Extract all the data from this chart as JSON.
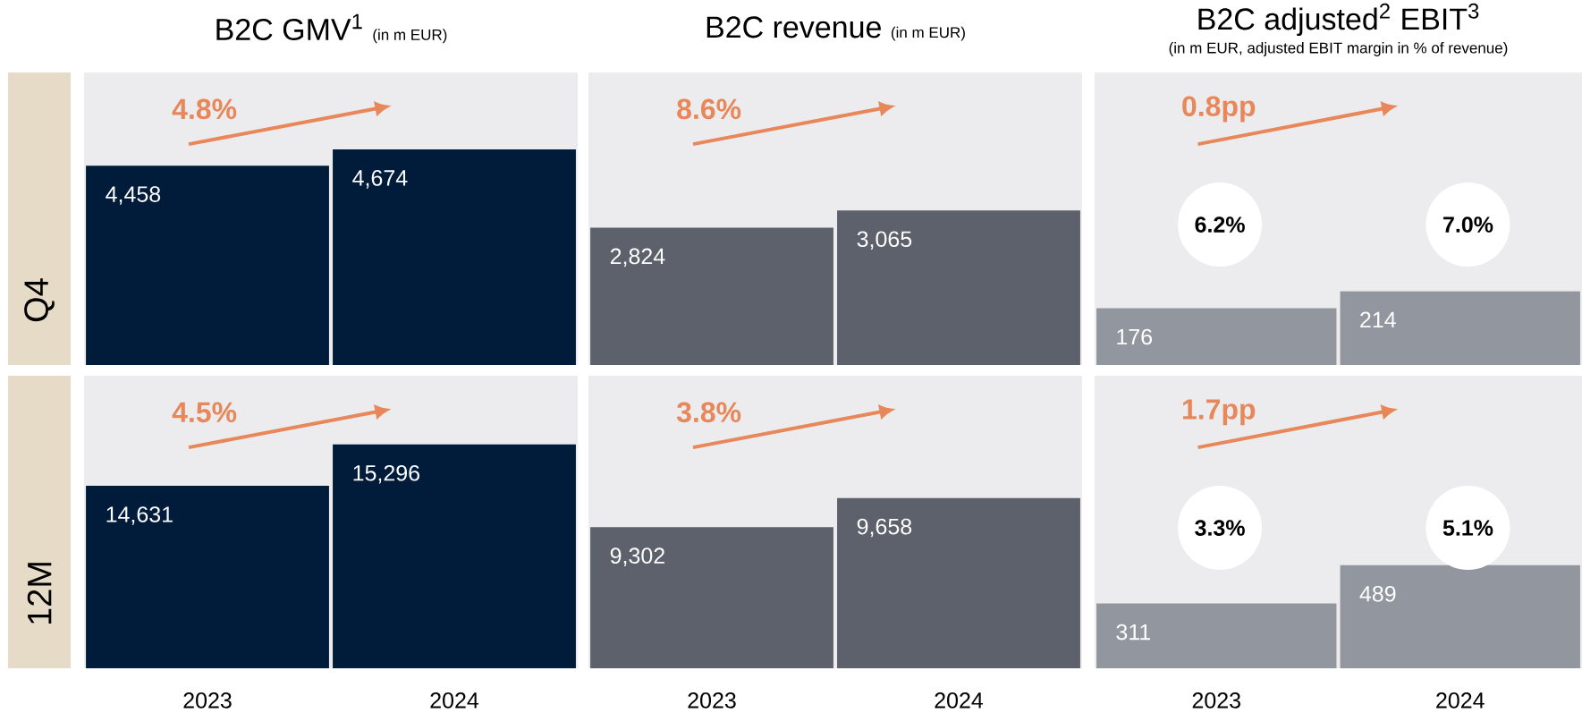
{
  "chart_data": [
    {
      "type": "bar",
      "title": "B2C GMV$^{1}$",
      "subtitle": "(in m EUR)",
      "ylabel": "Q4",
      "categories": [
        "2023",
        "2024"
      ],
      "values": [
        4458,
        4674
      ],
      "value_labels": [
        "4,458",
        "4,674"
      ],
      "color": "#011c3a",
      "ylim": [
        1800,
        5700
      ],
      "tick_labels": false,
      "annotations": [
        "4.8%"
      ]
    },
    {
      "type": "bar",
      "title": "B2C revenue",
      "subtitle": "(in m EUR)",
      "categories": [
        "2023",
        "2024"
      ],
      "values": [
        2824,
        3065
      ],
      "value_labels": [
        "2,824",
        "3,065"
      ],
      "color": "#5d616b",
      "ylim": [
        900,
        5000
      ],
      "tick_labels": false,
      "annotations": [
        "8.6%"
      ]
    },
    {
      "type": "bar",
      "title": "B2C adjusted$^{2}$ EBIT$^{3}$",
      "subtitle": "(in m EUR, adjusted EBIT margin in % of revenue)",
      "categories": [
        "2023",
        "2024"
      ],
      "values": [
        176,
        214
      ],
      "value_labels": [
        "176",
        "214"
      ],
      "color": "#92979f",
      "ylim": [
        50,
        700
      ],
      "tick_labels": false,
      "annotations": [
        "0.8pp",
        "6.2%",
        "7.0%"
      ]
    },
    {
      "type": "bar",
      "ylabel": "12M",
      "categories": [
        "2023",
        "2024"
      ],
      "values": [
        14631,
        15296
      ],
      "value_labels": [
        "14,631",
        "15,296"
      ],
      "color": "#011c3a",
      "ylim": [
        11700,
        16400
      ],
      "tick_labels": "x",
      "annotations": [
        "4.5%"
      ]
    },
    {
      "type": "bar",
      "categories": [
        "2023",
        "2024"
      ],
      "values": [
        9302,
        9658
      ],
      "value_labels": [
        "9,302",
        "9,658"
      ],
      "color": "#5d616b",
      "ylim": [
        7580,
        11150
      ],
      "tick_labels": "x",
      "annotations": [
        "3.8%"
      ]
    },
    {
      "type": "bar",
      "categories": [
        "2023",
        "2024"
      ],
      "values": [
        311,
        489
      ],
      "value_labels": [
        "311",
        "489"
      ],
      "color": "#92979f",
      "ylim": [
        10,
        1370
      ],
      "tick_labels": "x",
      "annotations": [
        "1.7pp",
        "3.3%",
        "5.1%"
      ]
    }
  ]
}
